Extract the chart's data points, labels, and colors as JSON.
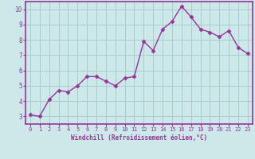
{
  "x": [
    0,
    1,
    2,
    3,
    4,
    5,
    6,
    7,
    8,
    9,
    10,
    11,
    12,
    13,
    14,
    15,
    16,
    17,
    18,
    19,
    20,
    21,
    22,
    23
  ],
  "y": [
    3.1,
    3.0,
    4.1,
    4.7,
    4.6,
    5.0,
    5.6,
    5.6,
    5.3,
    5.0,
    5.5,
    5.6,
    7.9,
    7.3,
    8.7,
    9.2,
    10.2,
    9.5,
    8.7,
    8.5,
    8.2,
    8.6,
    7.5,
    7.1
  ],
  "xlabel": "Windchill (Refroidissement éolien,°C)",
  "ylim": [
    2.5,
    10.5
  ],
  "xlim": [
    -0.5,
    23.5
  ],
  "yticks": [
    3,
    4,
    5,
    6,
    7,
    8,
    9,
    10
  ],
  "xticks": [
    0,
    1,
    2,
    3,
    4,
    5,
    6,
    7,
    8,
    9,
    10,
    11,
    12,
    13,
    14,
    15,
    16,
    17,
    18,
    19,
    20,
    21,
    22,
    23
  ],
  "line_color": "#993399",
  "marker_color": "#993399",
  "bg_color": "#cce8e8",
  "grid_color": "#aacccc",
  "spine_color": "#993399",
  "tick_label_color": "#993399",
  "xlabel_color": "#993399",
  "font_family": "monospace"
}
